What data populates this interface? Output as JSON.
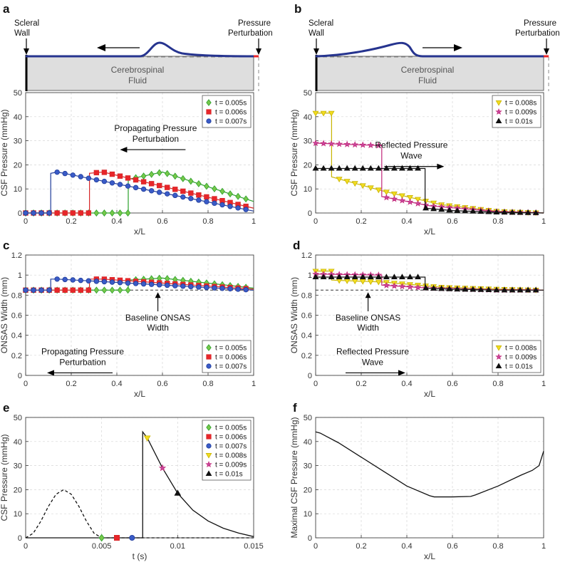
{
  "diagrams": [
    {
      "letter": "a",
      "left_label": [
        "Scleral",
        "Wall"
      ],
      "right_label": [
        "Pressure",
        "Perturbation"
      ],
      "fluid_label": [
        "Cerebrospinal",
        "Fluid"
      ],
      "wave_direction": "left"
    },
    {
      "letter": "b",
      "left_label": [
        "Scleral",
        "Wall"
      ],
      "right_label": [
        "Pressure",
        "Perturbation"
      ],
      "fluid_label": [
        "Cerebrospinal",
        "Fluid"
      ],
      "wave_direction": "right"
    }
  ],
  "chart_data": [
    {
      "letter": "",
      "type": "line",
      "xlabel": "x/L",
      "ylabel": "CSF Pressure (mmHg)",
      "xlim": [
        0,
        1
      ],
      "ylim": [
        0,
        50
      ],
      "xticks": [
        0,
        0.2,
        0.4,
        0.6,
        0.8,
        1
      ],
      "xticklabels": [
        "0",
        "0.2",
        "0.4",
        "0.6",
        "0.8",
        "1"
      ],
      "yticks": [
        0,
        10,
        20,
        30,
        40,
        50
      ],
      "yticklabels": [
        "0",
        "10",
        "20",
        "30",
        "40",
        "50"
      ],
      "grid": true,
      "legend_position": "top-right",
      "annotation": {
        "lines": [
          "Propagating Pressure",
          "Perturbation"
        ],
        "arrow": "left",
        "x": 0.57,
        "y": 34
      },
      "series": [
        {
          "name": "t = 0.005s",
          "color": "#2ca02c",
          "fill": "#77c84a",
          "marker": "diamond",
          "x": [
            0,
            0.45,
            0.45,
            0.6,
            1
          ],
          "y": [
            0,
            0,
            14,
            17,
            4.8
          ]
        },
        {
          "name": "t = 0.006s",
          "color": "#d62728",
          "fill": "#e8262a",
          "marker": "square",
          "x": [
            0,
            0.28,
            0.28,
            0.34,
            1
          ],
          "y": [
            0,
            0,
            16.5,
            17,
            2
          ]
        },
        {
          "name": "t = 0.007s",
          "color": "#1f3c9a",
          "fill": "#3a5bc7",
          "marker": "circle",
          "x": [
            0,
            0.11,
            0.11,
            0.14,
            1
          ],
          "y": [
            0,
            0,
            16.5,
            17,
            0.8
          ]
        }
      ]
    },
    {
      "letter": "",
      "type": "line",
      "xlabel": "x/L",
      "ylabel": "CSF Pressure (mmHg)",
      "xlim": [
        0,
        1
      ],
      "ylim": [
        0,
        50
      ],
      "xticks": [
        0,
        0.2,
        0.4,
        0.6,
        0.8,
        1
      ],
      "xticklabels": [
        "0",
        "0.2",
        "0.4",
        "0.6",
        "0.8",
        "1"
      ],
      "yticks": [
        0,
        10,
        20,
        30,
        40,
        50
      ],
      "yticklabels": [
        "0",
        "10",
        "20",
        "30",
        "40",
        "50"
      ],
      "grid": true,
      "legend_position": "top-right",
      "annotation": {
        "lines": [
          "Reflected Pressure",
          "Wave"
        ],
        "arrow": "right",
        "x": 0.42,
        "y": 27
      },
      "series": [
        {
          "name": "t = 0.008s",
          "color": "#c8b400",
          "fill": "#f2dc20",
          "marker": "triangle-down",
          "x": [
            0,
            0.07,
            0.07,
            0.3,
            0.55,
            0.8,
            1
          ],
          "y": [
            41.5,
            41.5,
            15,
            9,
            3.5,
            0.7,
            0
          ]
        },
        {
          "name": "t = 0.009s",
          "color": "#c2287a",
          "fill": "#c94aa0",
          "marker": "star",
          "x": [
            0,
            0.28,
            0.29,
            0.29,
            0.5,
            0.8,
            1
          ],
          "y": [
            29,
            28,
            28,
            6.8,
            3,
            0.5,
            0
          ]
        },
        {
          "name": "t = 0.01s",
          "color": "#111111",
          "fill": "#111111",
          "marker": "triangle-up",
          "x": [
            0,
            0.47,
            0.48,
            0.48,
            0.6,
            0.8,
            1
          ],
          "y": [
            18.5,
            18.5,
            18.5,
            2,
            1,
            0.3,
            0
          ]
        }
      ]
    },
    {
      "letter": "c",
      "type": "line",
      "xlabel": "x/L",
      "ylabel": "ONSAS Width (mm)",
      "xlim": [
        0,
        1
      ],
      "ylim": [
        0,
        1.2
      ],
      "xticks": [
        0,
        0.2,
        0.4,
        0.6,
        0.8,
        1
      ],
      "xticklabels": [
        "0",
        "0.2",
        "0.4",
        "0.6",
        "0.8",
        "1"
      ],
      "yticks": [
        0,
        0.2,
        0.4,
        0.6,
        0.8,
        1,
        1.2
      ],
      "yticklabels": [
        "0",
        "0.2",
        "0.4",
        "0.6",
        "0.8",
        "1",
        "1.2"
      ],
      "grid": true,
      "legend_position": "bottom-right",
      "baseline": {
        "y": 0.85,
        "style": "dashed"
      },
      "annotation": {
        "lines": [
          "Propagating Pressure",
          "Perturbation"
        ],
        "arrow": "left",
        "x": 0.25,
        "y": 0.21
      },
      "annotation2": {
        "lines": [
          "Baseline ONSAS",
          "Width"
        ],
        "x": 0.58,
        "y": 0.66,
        "pointer_to": 0.85
      },
      "series": [
        {
          "name": "t = 0.005s",
          "color": "#2ca02c",
          "fill": "#77c84a",
          "marker": "diamond",
          "x": [
            0,
            0.45,
            0.45,
            0.6,
            1
          ],
          "y": [
            0.85,
            0.85,
            0.95,
            0.97,
            0.87
          ]
        },
        {
          "name": "t = 0.006s",
          "color": "#d62728",
          "fill": "#e8262a",
          "marker": "square",
          "x": [
            0,
            0.28,
            0.28,
            0.34,
            1
          ],
          "y": [
            0.85,
            0.85,
            0.96,
            0.96,
            0.86
          ]
        },
        {
          "name": "t = 0.007s",
          "color": "#1f3c9a",
          "fill": "#3a5bc7",
          "marker": "circle",
          "x": [
            0,
            0.11,
            0.11,
            0.14,
            1
          ],
          "y": [
            0.85,
            0.85,
            0.96,
            0.96,
            0.85
          ]
        }
      ]
    },
    {
      "letter": "d",
      "type": "line",
      "xlabel": "x/L",
      "ylabel": "ONSAS Width (mm)",
      "xlim": [
        0,
        1
      ],
      "ylim": [
        0,
        1.2
      ],
      "xticks": [
        0,
        0.2,
        0.4,
        0.6,
        0.8,
        1
      ],
      "xticklabels": [
        "0",
        "0.2",
        "0.4",
        "0.6",
        "0.8",
        "1"
      ],
      "yticks": [
        0,
        0.2,
        0.4,
        0.6,
        0.8,
        1,
        1.2
      ],
      "yticklabels": [
        "0",
        "0.2",
        "0.4",
        "0.6",
        "0.8",
        "1",
        "1.2"
      ],
      "grid": true,
      "legend_position": "bottom-right",
      "baseline": {
        "y": 0.85,
        "style": "dashed"
      },
      "annotation": {
        "lines": [
          "Reflected Pressure",
          "Wave"
        ],
        "arrow": "right",
        "x": 0.25,
        "y": 0.21
      },
      "annotation2": {
        "lines": [
          "Baseline ONSAS",
          "Width"
        ],
        "x": 0.23,
        "y": 0.66,
        "pointer_to": 0.85
      },
      "series": [
        {
          "name": "t = 0.008s",
          "color": "#c8b400",
          "fill": "#f2dc20",
          "marker": "triangle-down",
          "x": [
            0,
            0.07,
            0.07,
            0.3,
            0.55,
            0.8,
            1
          ],
          "y": [
            1.04,
            1.04,
            0.95,
            0.93,
            0.88,
            0.86,
            0.85
          ]
        },
        {
          "name": "t = 0.009s",
          "color": "#c2287a",
          "fill": "#c94aa0",
          "marker": "star",
          "x": [
            0,
            0.28,
            0.29,
            0.29,
            0.5,
            0.8,
            1
          ],
          "y": [
            1.01,
            1.0,
            1.0,
            0.9,
            0.87,
            0.85,
            0.85
          ]
        },
        {
          "name": "t = 0.01s",
          "color": "#111111",
          "fill": "#111111",
          "marker": "triangle-up",
          "x": [
            0,
            0.47,
            0.48,
            0.48,
            0.6,
            0.8,
            1
          ],
          "y": [
            0.98,
            0.98,
            0.98,
            0.87,
            0.86,
            0.85,
            0.85
          ]
        }
      ]
    },
    {
      "letter": "e",
      "type": "line",
      "xlabel": "t (s)",
      "ylabel": "CSF Pressure (mmHg)",
      "xlim": [
        0,
        0.015
      ],
      "ylim": [
        0,
        50
      ],
      "xticks": [
        0,
        0.005,
        0.01,
        0.015
      ],
      "xticklabels": [
        "0",
        "0.005",
        "0.01",
        "0.015"
      ],
      "yticks": [
        0,
        10,
        20,
        30,
        40,
        50
      ],
      "yticklabels": [
        "0",
        "10",
        "20",
        "30",
        "40",
        "50"
      ],
      "grid": true,
      "legend_position": "top-right",
      "series": [
        {
          "name": "input pulse",
          "color": "#111111",
          "style": "dashed",
          "legend": false,
          "x": [
            0,
            0.0005,
            0.001,
            0.0015,
            0.002,
            0.0025,
            0.003,
            0.0035,
            0.004,
            0.0045,
            0.005
          ],
          "y": [
            0,
            1.9,
            6.9,
            13.1,
            18.1,
            20,
            18.1,
            13.1,
            6.9,
            1.9,
            0
          ]
        },
        {
          "name": "baseline",
          "color": "#111111",
          "style": "dashed",
          "legend": false,
          "x": [
            0.005,
            0.015
          ],
          "y": [
            0,
            0
          ]
        },
        {
          "name": "measured",
          "color": "#111111",
          "style": "solid",
          "legend": false,
          "x": [
            0,
            0.0077,
            0.0077,
            0.008,
            0.009,
            0.01,
            0.011,
            0.012,
            0.013,
            0.014,
            0.015
          ],
          "y": [
            0,
            0,
            44,
            41.5,
            29,
            18.5,
            11.5,
            7,
            4,
            2,
            0.5
          ]
        }
      ],
      "point_markers": [
        {
          "name": "t = 0.005s",
          "x": 0.005,
          "y": 0,
          "color": "#2ca02c",
          "fill": "#77c84a",
          "marker": "diamond"
        },
        {
          "name": "t = 0.006s",
          "x": 0.006,
          "y": 0,
          "color": "#d62728",
          "fill": "#e8262a",
          "marker": "square"
        },
        {
          "name": "t = 0.007s",
          "x": 0.007,
          "y": 0,
          "color": "#1f3c9a",
          "fill": "#3a5bc7",
          "marker": "circle"
        },
        {
          "name": "t = 0.008s",
          "x": 0.008,
          "y": 41.5,
          "color": "#c8b400",
          "fill": "#f2dc20",
          "marker": "triangle-down"
        },
        {
          "name": "t = 0.009s",
          "x": 0.009,
          "y": 29,
          "color": "#c2287a",
          "fill": "#c94aa0",
          "marker": "star"
        },
        {
          "name": "t = 0.01s",
          "x": 0.01,
          "y": 18.5,
          "color": "#111111",
          "fill": "#111111",
          "marker": "triangle-up"
        }
      ]
    },
    {
      "letter": "f",
      "type": "line",
      "xlabel": "x/L",
      "ylabel": "Maximal CSF Pressure (mmHg)",
      "xlim": [
        0,
        1
      ],
      "ylim": [
        0,
        50
      ],
      "xticks": [
        0,
        0.2,
        0.4,
        0.6,
        0.8,
        1
      ],
      "xticklabels": [
        "0",
        "0.2",
        "0.4",
        "0.6",
        "0.8",
        "1"
      ],
      "yticks": [
        0,
        10,
        20,
        30,
        40,
        50
      ],
      "yticklabels": [
        "0",
        "10",
        "20",
        "30",
        "40",
        "50"
      ],
      "grid": true,
      "legend_position": "none",
      "series": [
        {
          "name": "max pressure",
          "color": "#111111",
          "style": "solid",
          "legend": false,
          "x": [
            0,
            0.02,
            0.05,
            0.1,
            0.2,
            0.3,
            0.4,
            0.5,
            0.52,
            0.6,
            0.68,
            0.7,
            0.8,
            0.9,
            0.95,
            0.98,
            1
          ],
          "y": [
            44,
            43.5,
            42,
            39.5,
            33.5,
            27.5,
            21.5,
            17.5,
            17,
            17,
            17.2,
            17.8,
            21.5,
            26,
            28,
            30,
            36
          ]
        }
      ]
    }
  ]
}
